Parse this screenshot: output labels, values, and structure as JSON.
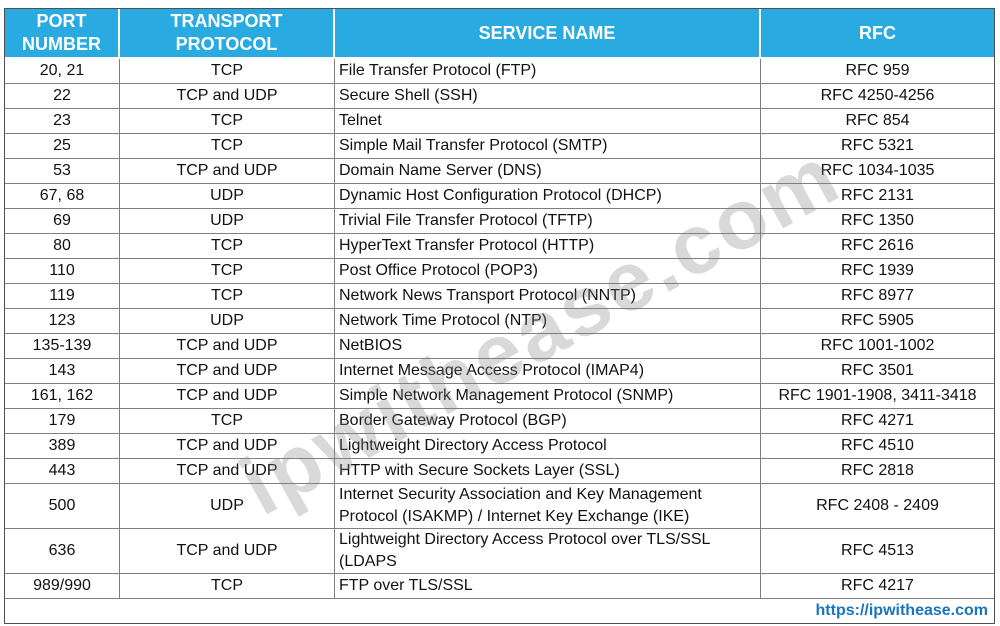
{
  "colors": {
    "header_bg": "#29ABE2",
    "header_text": "#FFFFFF",
    "link": "#1B75BC",
    "border": "#7F7F7F"
  },
  "watermark": "ipwithease.com",
  "footer": {
    "link": "https://ipwithease.com"
  },
  "table": {
    "headers": [
      "PORT NUMBER",
      "TRANSPORT PROTOCOL",
      "SERVICE NAME",
      "RFC"
    ],
    "rows": [
      {
        "port": "20, 21",
        "protocol": "TCP",
        "service": "File Transfer Protocol (FTP)",
        "rfc": "RFC 959"
      },
      {
        "port": "22",
        "protocol": "TCP and UDP",
        "service": "Secure Shell (SSH)",
        "rfc": "RFC 4250-4256"
      },
      {
        "port": "23",
        "protocol": "TCP",
        "service": "Telnet",
        "rfc": "RFC 854"
      },
      {
        "port": "25",
        "protocol": "TCP",
        "service": "Simple Mail Transfer Protocol (SMTP)",
        "rfc": "RFC 5321"
      },
      {
        "port": "53",
        "protocol": "TCP and UDP",
        "service": "Domain Name Server (DNS)",
        "rfc": "RFC 1034-1035"
      },
      {
        "port": "67, 68",
        "protocol": "UDP",
        "service": "Dynamic Host Configuration Protocol (DHCP)",
        "rfc": "RFC 2131"
      },
      {
        "port": "69",
        "protocol": "UDP",
        "service": "Trivial File Transfer Protocol (TFTP)",
        "rfc": "RFC 1350"
      },
      {
        "port": "80",
        "protocol": "TCP",
        "service": "HyperText Transfer Protocol (HTTP)",
        "rfc": "RFC 2616"
      },
      {
        "port": "110",
        "protocol": "TCP",
        "service": "Post Office Protocol (POP3)",
        "rfc": "RFC 1939"
      },
      {
        "port": "119",
        "protocol": "TCP",
        "service": "Network News Transport Protocol (NNTP)",
        "rfc": "RFC 8977"
      },
      {
        "port": "123",
        "protocol": "UDP",
        "service": "Network Time Protocol (NTP)",
        "rfc": "RFC 5905"
      },
      {
        "port": "135-139",
        "protocol": "TCP and UDP",
        "service": "NetBIOS",
        "rfc": "RFC 1001-1002"
      },
      {
        "port": "143",
        "protocol": "TCP and UDP",
        "service": "Internet Message Access Protocol (IMAP4)",
        "rfc": "RFC 3501"
      },
      {
        "port": "161, 162",
        "protocol": "TCP and UDP",
        "service": "Simple Network Management Protocol (SNMP)",
        "rfc": "RFC 1901-1908, 3411-3418"
      },
      {
        "port": "179",
        "protocol": "TCP",
        "service": "Border Gateway Protocol (BGP)",
        "rfc": "RFC 4271"
      },
      {
        "port": "389",
        "protocol": "TCP and UDP",
        "service": "Lightweight Directory Access Protocol",
        "rfc": "RFC 4510"
      },
      {
        "port": "443",
        "protocol": "TCP and UDP",
        "service": "HTTP with Secure Sockets Layer (SSL)",
        "rfc": "RFC 2818"
      },
      {
        "port": "500",
        "protocol": "UDP",
        "service": "Internet Security Association and Key Management\nProtocol (ISAKMP) / Internet Key Exchange (IKE)",
        "rfc": "RFC 2408 - 2409"
      },
      {
        "port": "636",
        "protocol": "TCP and UDP",
        "service": "Lightweight Directory Access Protocol over TLS/SSL\n(LDAPS",
        "rfc": "RFC 4513"
      },
      {
        "port": "989/990",
        "protocol": "TCP",
        "service": "FTP over TLS/SSL",
        "rfc": "RFC 4217"
      }
    ]
  }
}
